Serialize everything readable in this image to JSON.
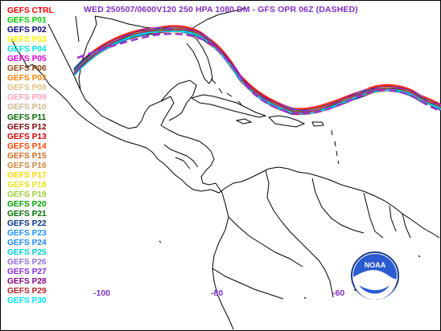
{
  "title": "WED 250507/0600V120  250 HPA 1080 DM - GFS OPR 06Z (DASHED)",
  "legend": [
    {
      "label": "GEFS CTRL",
      "color": "#ff0000"
    },
    {
      "label": "GEFS P01",
      "color": "#00cc00"
    },
    {
      "label": "GEFS P02",
      "color": "#000080"
    },
    {
      "label": "GEFS P03",
      "color": "#ffff00"
    },
    {
      "label": "GEFS P04",
      "color": "#00e0e0"
    },
    {
      "label": "GEFS P05",
      "color": "#e000e0"
    },
    {
      "label": "GEFS P06",
      "color": "#8b4513"
    },
    {
      "label": "GEFS P07",
      "color": "#ff7f00"
    },
    {
      "label": "GEFS P08",
      "color": "#e0c080"
    },
    {
      "label": "GEFS P09",
      "color": "#ffa0c0"
    },
    {
      "label": "GEFS P10",
      "color": "#d2b48c"
    },
    {
      "label": "GEFS P11",
      "color": "#006400"
    },
    {
      "label": "GEFS P12",
      "color": "#800000"
    },
    {
      "label": "GEFS P13",
      "color": "#cc0000"
    },
    {
      "label": "GEFS P14",
      "color": "#ff4500"
    },
    {
      "label": "GEFS P15",
      "color": "#d2691e"
    },
    {
      "label": "GEFS P16",
      "color": "#cd853f"
    },
    {
      "label": "GEFS P17",
      "color": "#ffd700"
    },
    {
      "label": "GEFS P18",
      "color": "#e8e020"
    },
    {
      "label": "GEFS P19",
      "color": "#9acd32"
    },
    {
      "label": "GEFS P20",
      "color": "#00a000"
    },
    {
      "label": "GEFS P21",
      "color": "#007000"
    },
    {
      "label": "GEFS P22",
      "color": "#003080"
    },
    {
      "label": "GEFS P23",
      "color": "#1e90ff"
    },
    {
      "label": "GEFS P24",
      "color": "#1c86ee"
    },
    {
      "label": "GEFS P25",
      "color": "#00ced1"
    },
    {
      "label": "GEFS P26",
      "color": "#9370db"
    },
    {
      "label": "GEFS P27",
      "color": "#8a2be2"
    },
    {
      "label": "GEFS P28",
      "color": "#7f007f"
    },
    {
      "label": "GEFS P29",
      "color": "#b22222"
    },
    {
      "label": "GEFS P30",
      "color": "#00e0ff"
    }
  ],
  "opr_color": "#9932cc",
  "longitude_labels": [
    "-100",
    "-80",
    "-60"
  ],
  "logo": {
    "text": "NOAA",
    "icon": "noaa-logo-icon"
  }
}
